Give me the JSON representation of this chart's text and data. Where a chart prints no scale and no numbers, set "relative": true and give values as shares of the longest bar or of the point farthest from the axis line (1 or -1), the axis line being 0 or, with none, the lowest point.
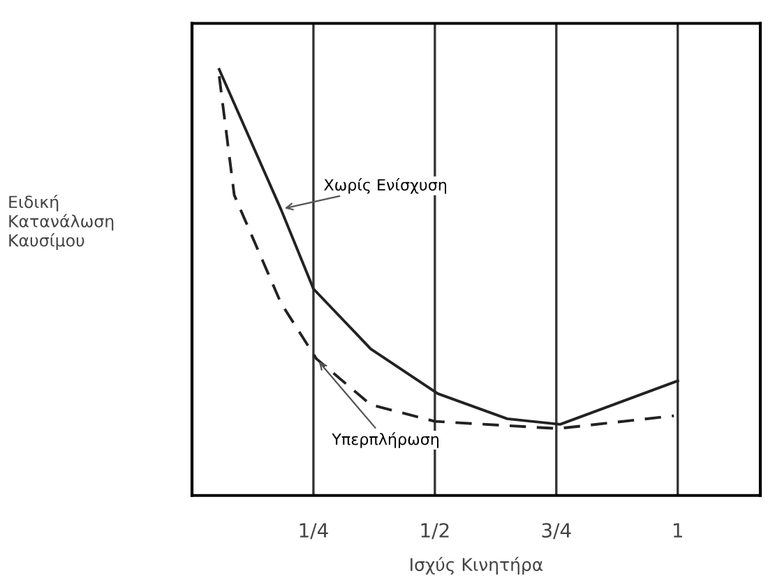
{
  "chart_data": {
    "type": "line",
    "relative": true,
    "xlabel": "Ισχύς Κινητήρα",
    "ylabel": "Ειδική\nΚατανάλωση\nΚαυσίμου",
    "xlim": [
      0,
      1.17
    ],
    "xticks": [
      {
        "value": 0.25,
        "label": "1/4"
      },
      {
        "value": 0.5,
        "label": "1/2"
      },
      {
        "value": 0.75,
        "label": "3/4"
      },
      1
    ],
    "grid": "x",
    "legend": false,
    "marker": "none",
    "series": [
      {
        "name": "Χωρίς Ενίσχυση",
        "color": "#222222",
        "line_style": "solid",
        "x": [
          0.056,
          0.183,
          0.25,
          0.368,
          0.506,
          0.649,
          0.758,
          1.0
        ],
        "values": [
          1,
          0.672,
          0.485,
          0.344,
          0.239,
          0.18,
          0.167,
          0.269
        ]
      },
      {
        "name": "Υπερπλήρωση",
        "color": "#222222",
        "line_style": "dashed",
        "x": [
          0.056,
          0.087,
          0.183,
          0.256,
          0.368,
          0.5,
          0.753,
          0.992
        ],
        "values": [
          0.984,
          0.705,
          0.452,
          0.321,
          0.213,
          0.174,
          0.157,
          0.187
        ]
      }
    ]
  }
}
